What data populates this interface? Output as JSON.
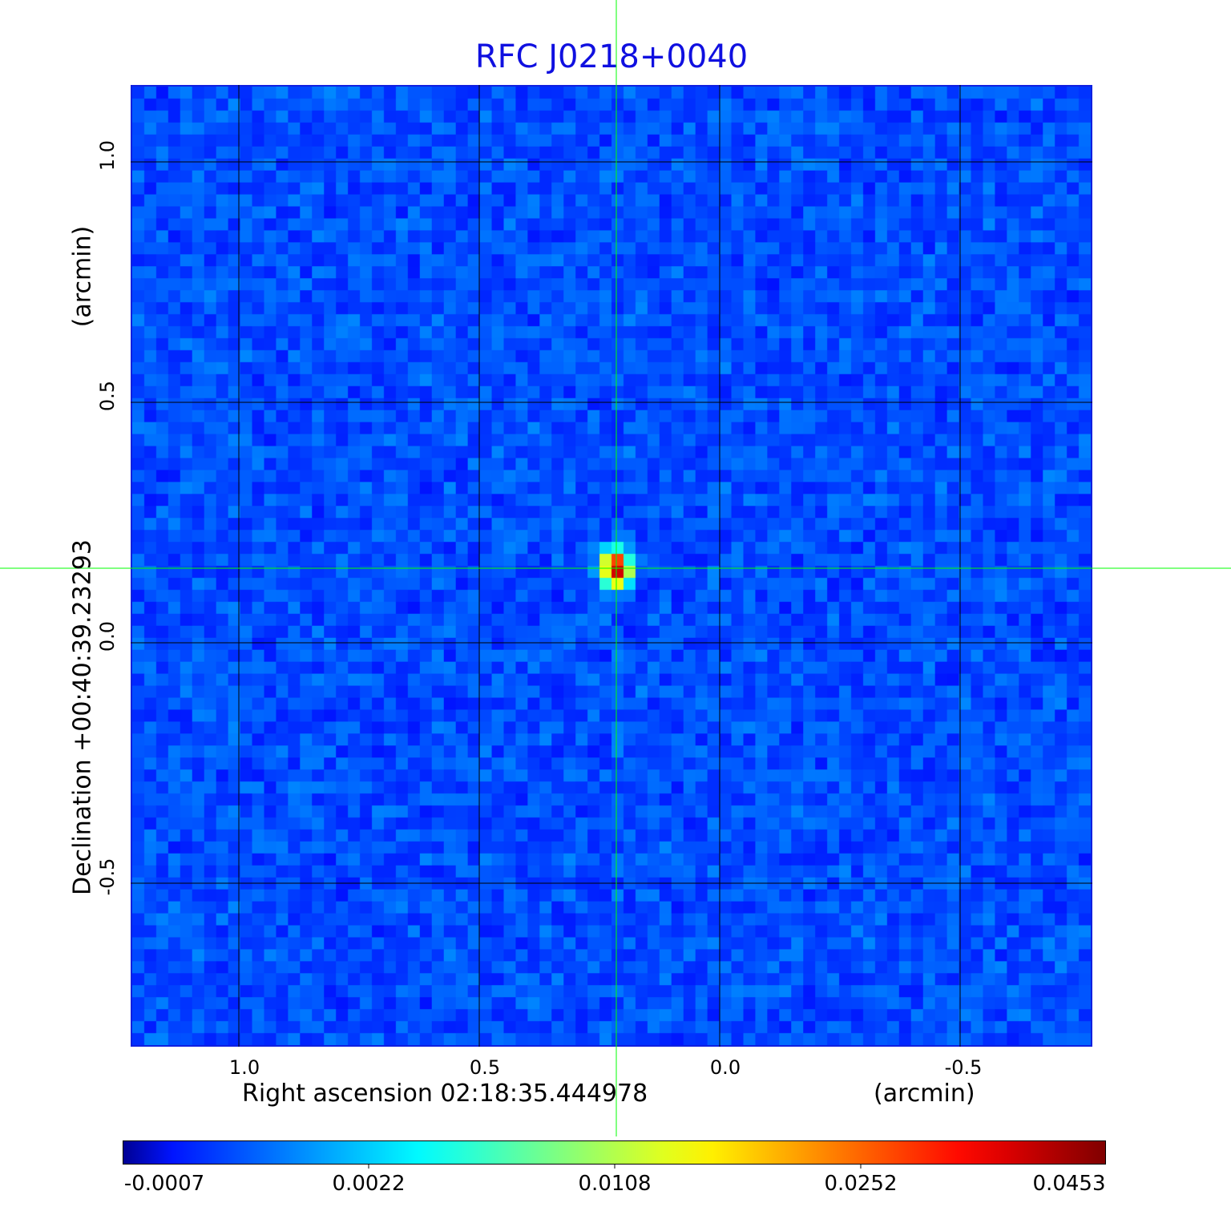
{
  "chart_data": {
    "type": "heatmap",
    "title": "RFC J0218+0040",
    "xlabel": "Right ascension  02:18:35.444978",
    "xunit": "(arcmin)",
    "ylabel": "Declination  +00:40:39.23293",
    "yunit": "(arcmin)",
    "xlim": [
      1.225,
      -0.775
    ],
    "ylim": [
      -0.84,
      1.16
    ],
    "x_ticks": [
      "1.0",
      "0.5",
      "0.0",
      "-0.5"
    ],
    "y_ticks": [
      "1.0",
      "0.5",
      "0.0",
      "-0.5"
    ],
    "grid": true,
    "colormap": "jet",
    "colorbar_ticks": [
      "-0.0007",
      "0.0022",
      "0.0108",
      "0.0252",
      "0.0453"
    ],
    "peak": {
      "x": 0.215,
      "y": 0.155,
      "value": 0.0453
    },
    "crosshair": {
      "x": 0.215,
      "y": 0.155,
      "color": "#00ff00"
    },
    "title_color": "#1010e0"
  }
}
